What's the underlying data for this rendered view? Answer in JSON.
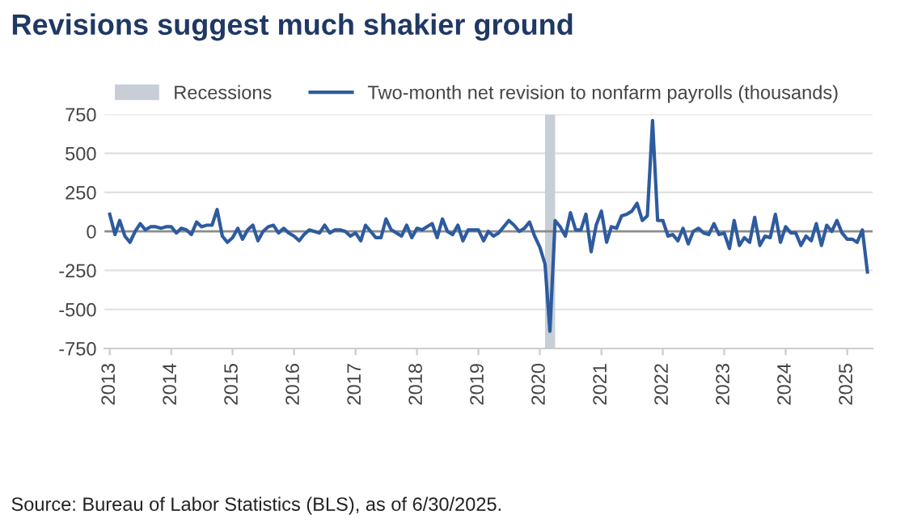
{
  "chart_data": {
    "type": "line",
    "title": "Revisions suggest much shakier ground",
    "series": [
      {
        "name": "Two-month net revision to nonfarm payrolls (thousands)",
        "color": "#2e5b9f",
        "x": [
          "2013-01",
          "2013-02",
          "2013-03",
          "2013-04",
          "2013-05",
          "2013-06",
          "2013-07",
          "2013-08",
          "2013-09",
          "2013-10",
          "2013-11",
          "2013-12",
          "2014-01",
          "2014-02",
          "2014-03",
          "2014-04",
          "2014-05",
          "2014-06",
          "2014-07",
          "2014-08",
          "2014-09",
          "2014-10",
          "2014-11",
          "2014-12",
          "2015-01",
          "2015-02",
          "2015-03",
          "2015-04",
          "2015-05",
          "2015-06",
          "2015-07",
          "2015-08",
          "2015-09",
          "2015-10",
          "2015-11",
          "2015-12",
          "2016-01",
          "2016-02",
          "2016-03",
          "2016-04",
          "2016-05",
          "2016-06",
          "2016-07",
          "2016-08",
          "2016-09",
          "2016-10",
          "2016-11",
          "2016-12",
          "2017-01",
          "2017-02",
          "2017-03",
          "2017-04",
          "2017-05",
          "2017-06",
          "2017-07",
          "2017-08",
          "2017-09",
          "2017-10",
          "2017-11",
          "2017-12",
          "2018-01",
          "2018-02",
          "2018-03",
          "2018-04",
          "2018-05",
          "2018-06",
          "2018-07",
          "2018-08",
          "2018-09",
          "2018-10",
          "2018-11",
          "2018-12",
          "2019-01",
          "2019-02",
          "2019-03",
          "2019-04",
          "2019-05",
          "2019-06",
          "2019-07",
          "2019-08",
          "2019-09",
          "2019-10",
          "2019-11",
          "2019-12",
          "2020-01",
          "2020-02",
          "2020-03",
          "2020-04",
          "2020-05",
          "2020-06",
          "2020-07",
          "2020-08",
          "2020-09",
          "2020-10",
          "2020-11",
          "2020-12",
          "2021-01",
          "2021-02",
          "2021-03",
          "2021-04",
          "2021-05",
          "2021-06",
          "2021-07",
          "2021-08",
          "2021-09",
          "2021-10",
          "2021-11",
          "2021-12",
          "2022-01",
          "2022-02",
          "2022-03",
          "2022-04",
          "2022-05",
          "2022-06",
          "2022-07",
          "2022-08",
          "2022-09",
          "2022-10",
          "2022-11",
          "2022-12",
          "2023-01",
          "2023-02",
          "2023-03",
          "2023-04",
          "2023-05",
          "2023-06",
          "2023-07",
          "2023-08",
          "2023-09",
          "2023-10",
          "2023-11",
          "2023-12",
          "2024-01",
          "2024-02",
          "2024-03",
          "2024-04",
          "2024-05",
          "2024-06",
          "2024-07",
          "2024-08",
          "2024-09",
          "2024-10",
          "2024-11",
          "2024-12",
          "2025-01",
          "2025-02",
          "2025-03",
          "2025-04",
          "2025-05"
        ],
        "values": [
          110,
          -20,
          70,
          -30,
          -70,
          0,
          50,
          10,
          30,
          30,
          20,
          30,
          30,
          -10,
          20,
          10,
          -20,
          60,
          30,
          40,
          40,
          140,
          -30,
          -70,
          -40,
          20,
          -50,
          10,
          40,
          -60,
          0,
          30,
          40,
          -10,
          20,
          -10,
          -30,
          -60,
          -20,
          10,
          0,
          -10,
          40,
          -10,
          10,
          10,
          0,
          -30,
          -10,
          -60,
          40,
          0,
          -40,
          -40,
          80,
          10,
          -10,
          -30,
          40,
          -40,
          20,
          10,
          30,
          50,
          -40,
          80,
          0,
          -20,
          40,
          -60,
          10,
          10,
          10,
          -60,
          0,
          -30,
          -10,
          30,
          70,
          40,
          0,
          20,
          60,
          -30,
          -100,
          -210,
          -640,
          70,
          30,
          -30,
          120,
          10,
          10,
          110,
          -130,
          40,
          130,
          -70,
          30,
          20,
          100,
          110,
          130,
          180,
          70,
          100,
          710,
          70,
          70,
          -30,
          -20,
          -60,
          20,
          -80,
          0,
          20,
          -10,
          -20,
          50,
          -20,
          -10,
          -110,
          70,
          -90,
          -40,
          -70,
          90,
          -90,
          -30,
          -40,
          110,
          -70,
          30,
          -10,
          -10,
          -90,
          -30,
          -60,
          50,
          -90,
          40,
          0,
          70,
          -10,
          -50,
          -50,
          -70,
          10,
          -260
        ]
      }
    ],
    "bands": [
      {
        "axis": "x",
        "from": "2020-02",
        "to": "2020-04",
        "label": "Recessions",
        "color": "#c8ced6"
      }
    ],
    "ref_lines": [
      {
        "axis": "y",
        "value": 0,
        "color": "#8c8c8c"
      }
    ],
    "xlim": [
      "2012-12",
      "2025-06"
    ],
    "xticks": [
      {
        "value": "2013-01",
        "label": "2013"
      },
      {
        "value": "2014-01",
        "label": "2014"
      },
      {
        "value": "2015-01",
        "label": "2015"
      },
      {
        "value": "2016-01",
        "label": "2016"
      },
      {
        "value": "2017-01",
        "label": "2017"
      },
      {
        "value": "2018-01",
        "label": "2018"
      },
      {
        "value": "2019-01",
        "label": "2019"
      },
      {
        "value": "2020-01",
        "label": "2020"
      },
      {
        "value": "2021-01",
        "label": "2021"
      },
      {
        "value": "2022-01",
        "label": "2022"
      },
      {
        "value": "2023-01",
        "label": "2023"
      },
      {
        "value": "2024-01",
        "label": "2024"
      },
      {
        "value": "2025-01",
        "label": "2025"
      }
    ],
    "ylim": [
      -750,
      750
    ],
    "yticks": [
      -750,
      -500,
      -250,
      0,
      250,
      500,
      750
    ],
    "grid": "y",
    "legend": "top",
    "marker": "none",
    "line_style": "solid",
    "annotations": [
      "Source: Bureau of Labor Statistics (BLS), as of 6/30/2025."
    ]
  }
}
